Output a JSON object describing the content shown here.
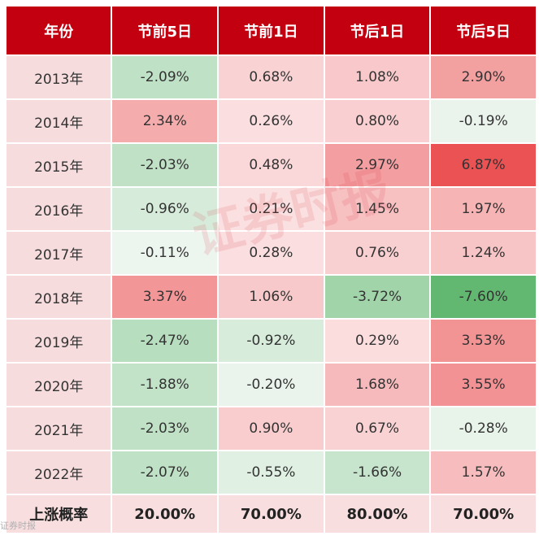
{
  "headers": [
    "年份",
    "节前5日",
    "节前1日",
    "节后1日",
    "节后5日"
  ],
  "rows": [
    {
      "year": "2013年",
      "values": [
        "-2.09%",
        "0.68%",
        "1.08%",
        "2.90%"
      ]
    },
    {
      "year": "2014年",
      "values": [
        "2.34%",
        "0.26%",
        "0.80%",
        "-0.19%"
      ]
    },
    {
      "year": "2015年",
      "values": [
        "-2.03%",
        "0.48%",
        "2.97%",
        "6.87%"
      ]
    },
    {
      "year": "2016年",
      "values": [
        "-0.96%",
        "0.21%",
        "1.45%",
        "1.97%"
      ]
    },
    {
      "year": "2017年",
      "values": [
        "-0.11%",
        "0.28%",
        "0.76%",
        "1.24%"
      ]
    },
    {
      "year": "2018年",
      "values": [
        "3.37%",
        "1.06%",
        "-3.72%",
        "-7.60%"
      ]
    },
    {
      "year": "2019年",
      "values": [
        "-2.47%",
        "-0.92%",
        "0.29%",
        "3.53%"
      ]
    },
    {
      "year": "2020年",
      "values": [
        "-1.88%",
        "-0.20%",
        "1.68%",
        "3.55%"
      ]
    },
    {
      "year": "2021年",
      "values": [
        "-2.03%",
        "0.90%",
        "0.67%",
        "-0.28%"
      ]
    },
    {
      "year": "2022年",
      "values": [
        "-2.07%",
        "-0.55%",
        "-1.66%",
        "1.57%"
      ]
    }
  ],
  "footer": {
    "label": "上涨概率",
    "values": [
      "20.00%",
      "70.00%",
      "80.00%",
      "70.00%"
    ]
  },
  "watermark": "证券时报",
  "corner_logo": "证券时报",
  "colors": {
    "header": "#c3000f",
    "year_cell": "#f7dcdd",
    "footer": "#f8dedf"
  }
}
